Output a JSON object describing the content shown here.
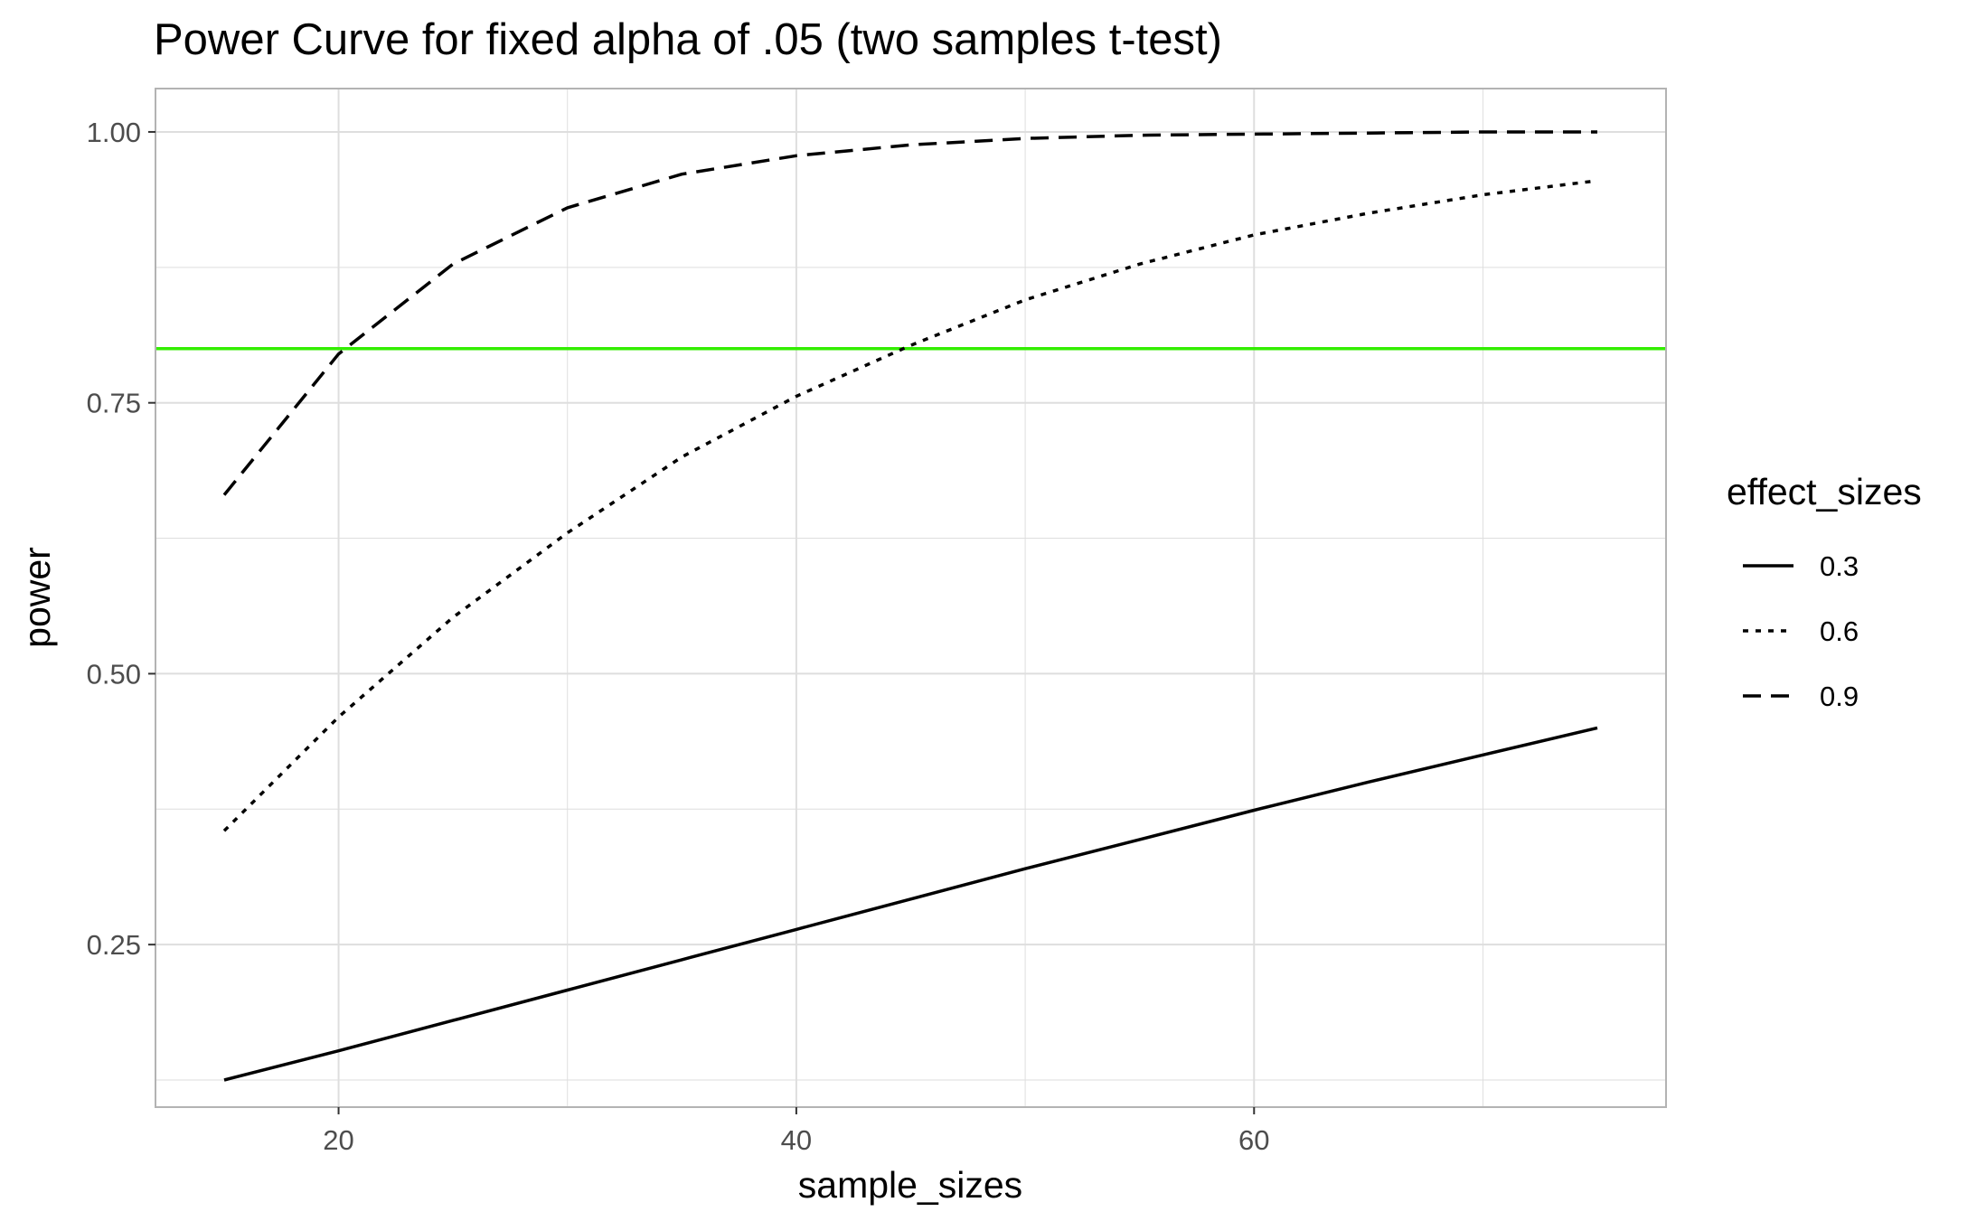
{
  "chart_data": {
    "type": "line",
    "title": "Power Curve for fixed alpha of .05 (two samples t-test)",
    "xlabel": "sample_sizes",
    "ylabel": "power",
    "xlim": [
      12,
      78
    ],
    "ylim": [
      0.1,
      1.04
    ],
    "xticks": [
      20,
      40,
      60
    ],
    "xtick_labels": [
      "20",
      "40",
      "60"
    ],
    "yticks": [
      0.25,
      0.5,
      0.75,
      1.0
    ],
    "ytick_labels": [
      "0.25",
      "0.50",
      "0.75",
      "1.00"
    ],
    "grid": true,
    "legend": {
      "title": "effect_sizes",
      "position": "right"
    },
    "reference_line": {
      "y": 0.8,
      "color": "#33ee00"
    },
    "x": [
      15,
      20,
      25,
      30,
      35,
      40,
      45,
      50,
      55,
      60,
      65,
      70,
      75
    ],
    "series": [
      {
        "name": "0.3",
        "dash": "solid",
        "values": [
          0.125,
          0.152,
          0.18,
          0.208,
          0.236,
          0.264,
          0.292,
          0.32,
          0.347,
          0.374,
          0.4,
          0.425,
          0.45
        ]
      },
      {
        "name": "0.6",
        "dash": "dotted",
        "values": [
          0.355,
          0.46,
          0.552,
          0.63,
          0.7,
          0.756,
          0.803,
          0.845,
          0.878,
          0.905,
          0.925,
          0.942,
          0.955
        ]
      },
      {
        "name": "0.9",
        "dash": "dashed",
        "values": [
          0.665,
          0.795,
          0.878,
          0.93,
          0.961,
          0.978,
          0.988,
          0.994,
          0.997,
          0.998,
          0.999,
          1.0,
          1.0
        ]
      }
    ],
    "colors": {
      "line": "#000000",
      "grid": "#dedede",
      "panel_border": "#b3b3b3",
      "tick_text": "#4d4d4d"
    }
  }
}
